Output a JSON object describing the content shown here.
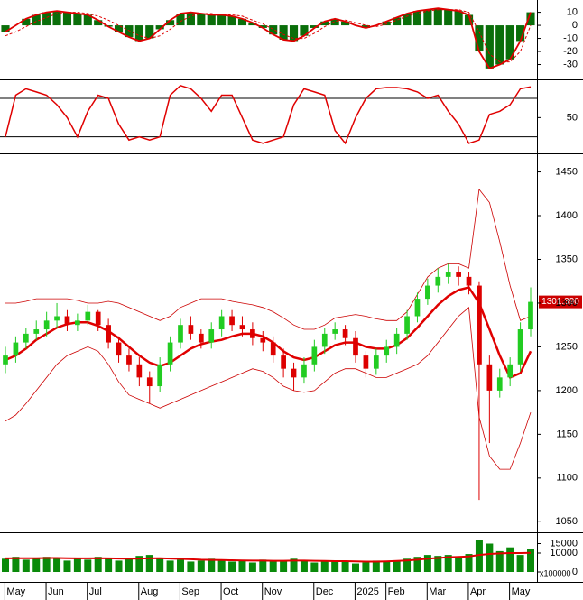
{
  "chart_data": [
    {
      "type": "macd",
      "ylim": [
        -40,
        18
      ],
      "yticks": [
        10,
        0,
        -10,
        -20,
        -30
      ],
      "bar_color": "#0a6e0a",
      "series": [
        {
          "color": "#e00000",
          "values": [
            -5,
            0,
            5,
            8,
            10,
            11,
            10,
            9,
            8,
            4,
            -1,
            -5,
            -9,
            -12,
            -10,
            -3,
            4,
            9,
            10,
            9,
            8,
            8,
            7,
            5,
            2,
            -2,
            -7,
            -11,
            -12,
            -8,
            -2,
            3,
            5,
            3,
            0,
            -2,
            0,
            3,
            6,
            9,
            11,
            12,
            13,
            12,
            11,
            8,
            -20,
            -33,
            -30,
            -26,
            -12,
            10
          ]
        },
        {
          "color": "#e00000",
          "dashed": true,
          "values": [
            -8,
            -5,
            -1,
            3,
            6,
            9,
            10,
            10,
            9,
            7,
            4,
            0,
            -4,
            -8,
            -10,
            -8,
            -3,
            3,
            7,
            9,
            9,
            8,
            8,
            7,
            4,
            1,
            -3,
            -7,
            -10,
            -10,
            -6,
            -1,
            3,
            4,
            2,
            0,
            -1,
            1,
            4,
            7,
            9,
            11,
            12,
            12,
            12,
            10,
            -5,
            -22,
            -28,
            -28,
            -20,
            0
          ]
        }
      ]
    },
    {
      "type": "oscillator",
      "ylim": [
        -3,
        104
      ],
      "yticks": [
        50
      ],
      "hlines": [
        20,
        80
      ],
      "color": "#e00000",
      "values": [
        20,
        85,
        95,
        90,
        85,
        70,
        50,
        20,
        60,
        85,
        80,
        40,
        15,
        20,
        15,
        20,
        85,
        100,
        95,
        80,
        60,
        85,
        85,
        50,
        15,
        10,
        15,
        20,
        70,
        95,
        90,
        85,
        30,
        10,
        50,
        80,
        95,
        97,
        97,
        95,
        90,
        80,
        85,
        60,
        40,
        10,
        15,
        55,
        60,
        70,
        95,
        98
      ]
    },
    {
      "type": "candlestick",
      "ylim": [
        1040,
        1465
      ],
      "yticks": [
        1050,
        1100,
        1150,
        1200,
        1250,
        1300,
        1350,
        1400,
        1450
      ],
      "up_color": "#22cc22",
      "down_color": "#dd0000",
      "last_value_label": "1301.390",
      "open": [
        1230,
        1240,
        1255,
        1265,
        1270,
        1280,
        1285,
        1275,
        1280,
        1290,
        1275,
        1255,
        1240,
        1230,
        1215,
        1205,
        1230,
        1255,
        1275,
        1265,
        1255,
        1270,
        1285,
        1275,
        1270,
        1260,
        1255,
        1240,
        1225,
        1215,
        1230,
        1250,
        1265,
        1270,
        1260,
        1240,
        1225,
        1240,
        1250,
        1265,
        1285,
        1305,
        1320,
        1330,
        1335,
        1330,
        1320,
        1230,
        1200,
        1215,
        1230,
        1270
      ],
      "high": [
        1250,
        1262,
        1272,
        1280,
        1290,
        1300,
        1292,
        1288,
        1298,
        1292,
        1282,
        1262,
        1248,
        1238,
        1222,
        1238,
        1262,
        1282,
        1285,
        1270,
        1278,
        1292,
        1292,
        1285,
        1278,
        1268,
        1262,
        1248,
        1232,
        1238,
        1258,
        1272,
        1278,
        1275,
        1268,
        1245,
        1248,
        1258,
        1272,
        1292,
        1312,
        1328,
        1340,
        1345,
        1342,
        1335,
        1325,
        1240,
        1225,
        1238,
        1278,
        1318
      ],
      "low": [
        1220,
        1232,
        1248,
        1258,
        1262,
        1272,
        1268,
        1268,
        1275,
        1268,
        1248,
        1232,
        1222,
        1205,
        1185,
        1198,
        1222,
        1248,
        1258,
        1248,
        1248,
        1262,
        1268,
        1262,
        1252,
        1245,
        1232,
        1215,
        1200,
        1208,
        1222,
        1242,
        1258,
        1252,
        1232,
        1215,
        1218,
        1232,
        1242,
        1258,
        1278,
        1298,
        1312,
        1322,
        1320,
        1310,
        1075,
        1140,
        1192,
        1205,
        1222,
        1262
      ],
      "close": [
        1240,
        1255,
        1265,
        1270,
        1280,
        1285,
        1275,
        1280,
        1290,
        1275,
        1255,
        1240,
        1230,
        1215,
        1205,
        1230,
        1255,
        1275,
        1265,
        1255,
        1270,
        1285,
        1275,
        1270,
        1260,
        1255,
        1240,
        1225,
        1215,
        1230,
        1250,
        1265,
        1270,
        1260,
        1240,
        1225,
        1240,
        1250,
        1265,
        1285,
        1305,
        1320,
        1330,
        1335,
        1330,
        1320,
        1230,
        1200,
        1215,
        1230,
        1270,
        1301.39
      ],
      "series": [
        {
          "color": "#e00000",
          "width": 2.5,
          "values": [
            1235,
            1240,
            1248,
            1258,
            1265,
            1272,
            1276,
            1278,
            1278,
            1274,
            1268,
            1260,
            1250,
            1240,
            1232,
            1228,
            1232,
            1240,
            1248,
            1253,
            1256,
            1258,
            1262,
            1265,
            1265,
            1262,
            1255,
            1245,
            1238,
            1235,
            1238,
            1245,
            1252,
            1255,
            1255,
            1250,
            1248,
            1248,
            1252,
            1260,
            1272,
            1285,
            1298,
            1308,
            1315,
            1318,
            1300,
            1270,
            1240,
            1215,
            1220,
            1245
          ]
        },
        {
          "color": "#cc0000",
          "width": 0.8,
          "values": [
            1300,
            1300,
            1302,
            1305,
            1305,
            1305,
            1305,
            1303,
            1300,
            1300,
            1302,
            1300,
            1295,
            1290,
            1285,
            1280,
            1285,
            1295,
            1300,
            1305,
            1305,
            1305,
            1302,
            1300,
            1298,
            1295,
            1290,
            1283,
            1275,
            1270,
            1270,
            1275,
            1283,
            1285,
            1287,
            1285,
            1282,
            1280,
            1280,
            1290,
            1310,
            1330,
            1340,
            1345,
            1345,
            1340,
            1430,
            1415,
            1370,
            1320,
            1280,
            1285
          ]
        },
        {
          "color": "#cc0000",
          "width": 0.8,
          "values": [
            1165,
            1172,
            1185,
            1200,
            1215,
            1230,
            1240,
            1245,
            1250,
            1245,
            1230,
            1210,
            1195,
            1190,
            1185,
            1180,
            1185,
            1190,
            1195,
            1200,
            1205,
            1210,
            1215,
            1220,
            1225,
            1222,
            1215,
            1205,
            1200,
            1198,
            1200,
            1210,
            1220,
            1225,
            1225,
            1220,
            1215,
            1215,
            1220,
            1225,
            1230,
            1240,
            1255,
            1270,
            1285,
            1295,
            1170,
            1125,
            1110,
            1110,
            1140,
            1175
          ]
        }
      ]
    },
    {
      "type": "volume",
      "ylim": [
        0,
        20000
      ],
      "yticks": [
        15000,
        10000,
        0
      ],
      "unit_label": "x100000",
      "color": "#0a8a0a",
      "values": [
        7000,
        8000,
        6500,
        7500,
        8000,
        7000,
        6000,
        7500,
        6500,
        8000,
        7000,
        6000,
        7500,
        8500,
        9000,
        7000,
        6000,
        6500,
        5500,
        6000,
        7000,
        6500,
        5500,
        6000,
        5000,
        6500,
        6000,
        5500,
        7000,
        6000,
        5000,
        5500,
        6000,
        5500,
        4500,
        5000,
        6000,
        5500,
        6000,
        7000,
        8000,
        9000,
        8500,
        9000,
        8000,
        9500,
        17000,
        15000,
        11000,
        13000,
        9000,
        12000
      ],
      "series": [
        {
          "color": "#e00000",
          "width": 2,
          "values": [
            7200,
            7300,
            7300,
            7300,
            7400,
            7400,
            7300,
            7200,
            7200,
            7300,
            7200,
            7100,
            7000,
            7100,
            7200,
            7300,
            7100,
            6900,
            6700,
            6500,
            6400,
            6300,
            6200,
            6100,
            6000,
            6000,
            5900,
            5900,
            6000,
            6000,
            5900,
            5800,
            5700,
            5700,
            5600,
            5500,
            5500,
            5600,
            5800,
            6100,
            6500,
            7000,
            7400,
            7800,
            8000,
            8200,
            9000,
            9500,
            9800,
            10000,
            10000,
            10100
          ]
        }
      ],
      "xticks": [
        {
          "value": 1,
          "label": "May"
        },
        {
          "value": 5,
          "label": "Jun"
        },
        {
          "value": 9,
          "label": "Jul"
        },
        {
          "value": 14,
          "label": "Aug"
        },
        {
          "value": 18,
          "label": "Sep"
        },
        {
          "value": 22,
          "label": "Oct"
        },
        {
          "value": 26,
          "label": "Nov"
        },
        {
          "value": 31,
          "label": "Dec"
        },
        {
          "value": 35,
          "label": "2025"
        },
        {
          "value": 38,
          "label": "Feb"
        },
        {
          "value": 42,
          "label": "Mar"
        },
        {
          "value": 46,
          "label": "Apr"
        },
        {
          "value": 50,
          "label": "May"
        }
      ]
    }
  ]
}
